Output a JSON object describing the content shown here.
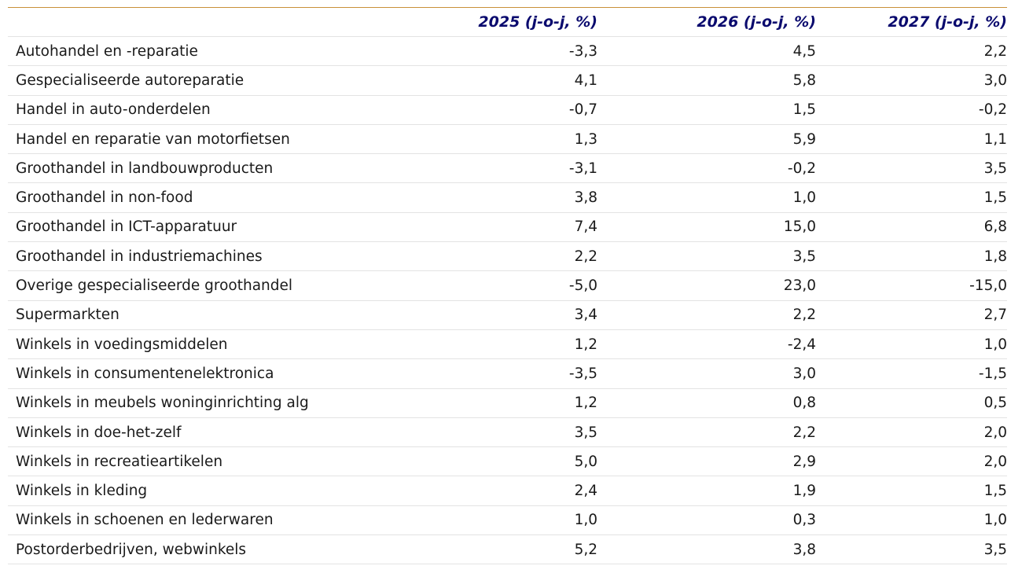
{
  "table": {
    "headers": [
      "",
      "2025 (j-o-j, %)",
      "2026 (j-o-j, %)",
      "2027 (j-o-j, %)"
    ],
    "rows": [
      {
        "label": "Autohandel en -reparatie",
        "v2025": "-3,3",
        "v2026": "4,5",
        "v2027": "2,2"
      },
      {
        "label": "Gespecialiseerde autoreparatie",
        "v2025": "4,1",
        "v2026": "5,8",
        "v2027": "3,0"
      },
      {
        "label": "Handel in auto-onderdelen",
        "v2025": "-0,7",
        "v2026": "1,5",
        "v2027": "-0,2"
      },
      {
        "label": "Handel en reparatie van motorfietsen",
        "v2025": "1,3",
        "v2026": "5,9",
        "v2027": "1,1"
      },
      {
        "label": "Groothandel in landbouwproducten",
        "v2025": "-3,1",
        "v2026": "-0,2",
        "v2027": "3,5"
      },
      {
        "label": "Groothandel in non-food",
        "v2025": "3,8",
        "v2026": "1,0",
        "v2027": "1,5"
      },
      {
        "label": "Groothandel in ICT-apparatuur",
        "v2025": "7,4",
        "v2026": "15,0",
        "v2027": "6,8"
      },
      {
        "label": "Groothandel in industriemachines",
        "v2025": "2,2",
        "v2026": "3,5",
        "v2027": "1,8"
      },
      {
        "label": "Overige gespecialiseerde groothandel",
        "v2025": "-5,0",
        "v2026": "23,0",
        "v2027": "-15,0"
      },
      {
        "label": "Supermarkten",
        "v2025": "3,4",
        "v2026": "2,2",
        "v2027": "2,7"
      },
      {
        "label": "Winkels in voedingsmiddelen",
        "v2025": "1,2",
        "v2026": "-2,4",
        "v2027": "1,0"
      },
      {
        "label": "Winkels in consumentenelektronica",
        "v2025": "-3,5",
        "v2026": "3,0",
        "v2027": "-1,5"
      },
      {
        "label": "Winkels in meubels woninginrichting alg",
        "v2025": "1,2",
        "v2026": "0,8",
        "v2027": "0,5"
      },
      {
        "label": "Winkels in doe-het-zelf",
        "v2025": "3,5",
        "v2026": "2,2",
        "v2027": "2,0"
      },
      {
        "label": "Winkels in recreatieartikelen",
        "v2025": "5,0",
        "v2026": "2,9",
        "v2027": "2,0"
      },
      {
        "label": "Winkels in kleding",
        "v2025": "2,4",
        "v2026": "1,9",
        "v2027": "1,5"
      },
      {
        "label": "Winkels in schoenen en lederwaren",
        "v2025": "1,0",
        "v2026": "0,3",
        "v2027": "1,0"
      },
      {
        "label": "Postorderbedrijven, webwinkels",
        "v2025": "5,2",
        "v2026": "3,8",
        "v2027": "3,5"
      }
    ]
  },
  "colors": {
    "header_text": "#0a0a6e",
    "top_rule": "#c8913a",
    "row_divider": "#e3e3e3"
  }
}
